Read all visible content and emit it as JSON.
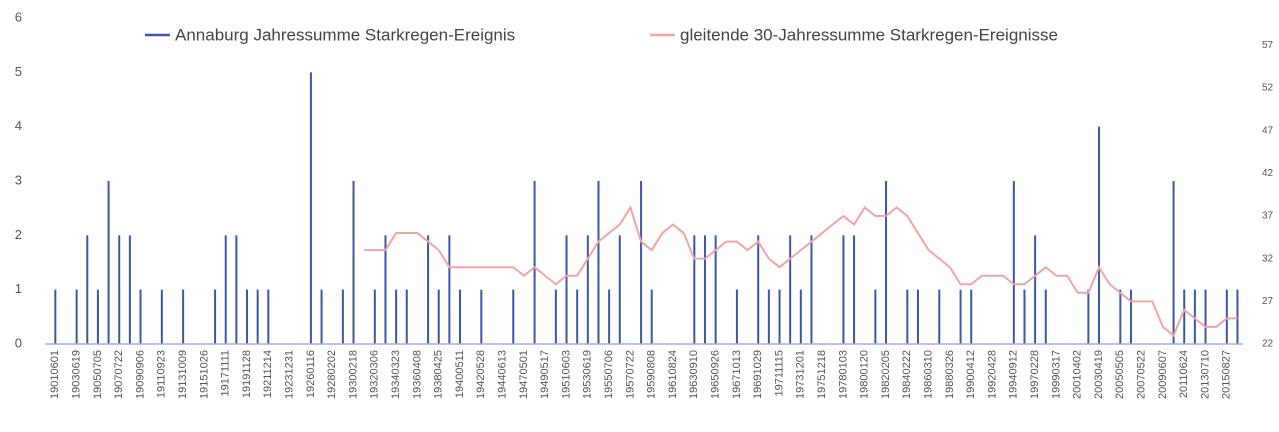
{
  "chart_data": {
    "type": "bar",
    "categories": [
      "19010601",
      null,
      "19030619",
      null,
      "19050705",
      null,
      "19070722",
      null,
      "19090906",
      null,
      "19110923",
      null,
      "19131009",
      null,
      "19151026",
      null,
      "19171111",
      null,
      "19191128",
      null,
      "19211214",
      null,
      "19231231",
      null,
      "19260116",
      null,
      "19280202",
      null,
      "19300218",
      null,
      "19320306",
      null,
      "19340323",
      null,
      "19360408",
      null,
      "19380425",
      null,
      "19400511",
      null,
      "19420528",
      null,
      "19440613",
      null,
      "19470501",
      null,
      "19490517",
      null,
      "19510603",
      null,
      "19530619",
      null,
      "19550706",
      null,
      "19570722",
      null,
      "19590808",
      null,
      "19610824",
      null,
      "19630910",
      null,
      "19650926",
      null,
      "19671013",
      null,
      "19691029",
      null,
      "19711115",
      null,
      "19731201",
      null,
      "19751218",
      null,
      "19780103",
      null,
      "19800120",
      null,
      "19820205",
      null,
      "19840222",
      null,
      "19860310",
      null,
      "19880326",
      null,
      "19900412",
      null,
      "19920428",
      null,
      "19940912",
      null,
      "19970228",
      null,
      "19990317",
      null,
      "20010402",
      null,
      "20030419",
      null,
      "20050505",
      null,
      "20070522",
      null,
      "20090607",
      null,
      "20110624",
      null,
      "20130710",
      null,
      "20150827",
      null
    ],
    "series": [
      {
        "name": "Annaburg Jahressumme Starkregen-Ereignis",
        "color": "#3a58a8",
        "values": [
          1,
          0,
          1,
          2,
          1,
          3,
          2,
          2,
          1,
          0,
          1,
          0,
          1,
          0,
          0,
          1,
          2,
          2,
          1,
          1,
          1,
          0,
          0,
          0,
          5,
          1,
          0,
          1,
          3,
          0,
          1,
          2,
          1,
          1,
          0,
          2,
          1,
          2,
          1,
          0,
          1,
          0,
          0,
          1,
          0,
          3,
          0,
          1,
          2,
          1,
          2,
          3,
          1,
          2,
          0,
          3,
          1,
          0,
          0,
          0,
          2,
          2,
          2,
          0,
          1,
          0,
          2,
          1,
          1,
          2,
          1,
          2,
          0,
          0,
          2,
          2,
          0,
          1,
          3,
          0,
          1,
          1,
          0,
          1,
          0,
          1,
          1,
          0,
          0,
          0,
          3,
          1,
          2,
          1,
          0,
          0,
          0,
          1,
          4,
          0,
          1,
          1,
          0,
          0,
          0,
          3,
          1,
          1,
          1,
          0,
          1,
          1
        ]
      },
      {
        "name": "gleitende 30-Jahressumme Starkregen-Ereignisse",
        "color": "#f4a3a3",
        "axis": "y2",
        "values": [
          null,
          null,
          null,
          null,
          null,
          null,
          null,
          null,
          null,
          null,
          null,
          null,
          null,
          null,
          null,
          null,
          null,
          null,
          null,
          null,
          null,
          null,
          null,
          null,
          null,
          null,
          null,
          null,
          null,
          33,
          33,
          33,
          35,
          35,
          35,
          34,
          33,
          31,
          31,
          31,
          31,
          31,
          31,
          31,
          30,
          31,
          30,
          29,
          30,
          30,
          32,
          34,
          35,
          36,
          38,
          34,
          33,
          35,
          36,
          35,
          32,
          32,
          33,
          34,
          34,
          33,
          34,
          32,
          31,
          32,
          33,
          34,
          35,
          36,
          37,
          36,
          38,
          37,
          37,
          38,
          37,
          35,
          33,
          32,
          31,
          29,
          29,
          30,
          30,
          30,
          29,
          29,
          30,
          31,
          30,
          30,
          28,
          28,
          31,
          29,
          28,
          27,
          27,
          27,
          24,
          23,
          26,
          25,
          24,
          24,
          25,
          25
        ]
      }
    ],
    "ylim": [
      0,
      6
    ],
    "yticks": [
      0,
      1,
      2,
      3,
      4,
      5,
      6
    ],
    "y2lim": [
      22,
      60.2
    ],
    "y2ticks": [
      22,
      27,
      32,
      37,
      42,
      47,
      52,
      57
    ],
    "legend": "top"
  }
}
